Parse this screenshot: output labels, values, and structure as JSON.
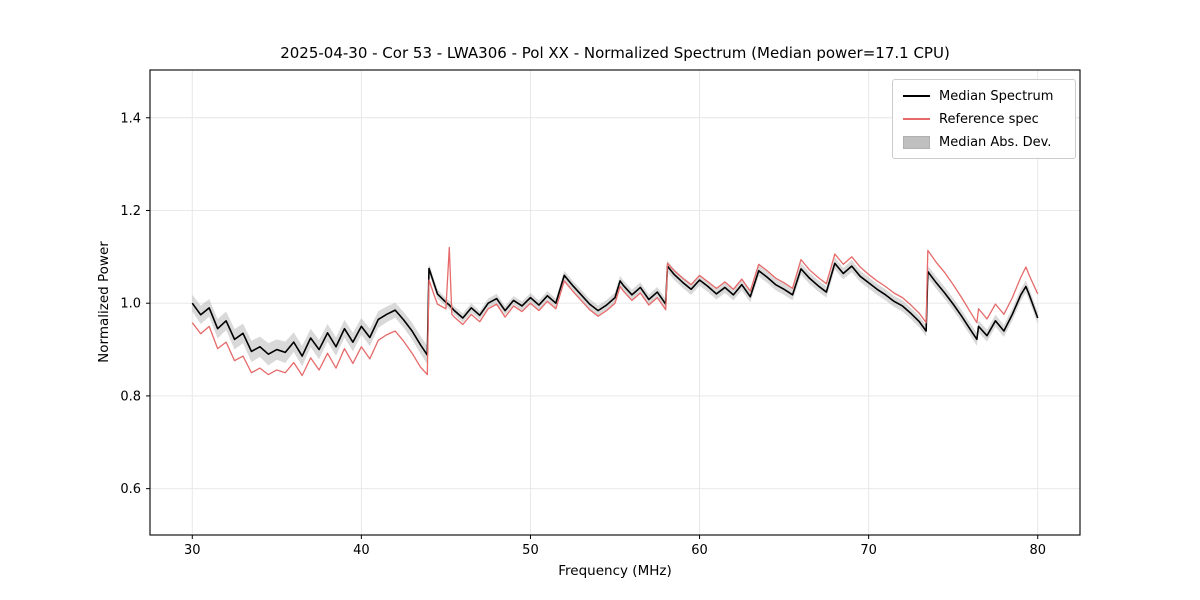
{
  "chart_data": {
    "type": "line",
    "title": "2025-04-30 - Cor 53 - LWA306 - Pol XX - Normalized Spectrum (Median power=17.1 CPU)",
    "xlabel": "Frequency (MHz)",
    "ylabel": "Normalized Power",
    "xlim": [
      27.5,
      82.5
    ],
    "ylim": [
      0.5,
      1.503
    ],
    "xticks": [
      30,
      40,
      50,
      60,
      70,
      80
    ],
    "yticks": [
      0.6,
      0.8,
      1.0,
      1.2,
      1.4
    ],
    "grid": true,
    "legend_position": "upper right",
    "colors": {
      "median": "#000000",
      "reference": "#e66a6a",
      "mad_band": "#aaaaaa",
      "grid": "#e6e6e6",
      "axes": "#000000",
      "tick_text": "#000000"
    },
    "legend": [
      {
        "label": "Median Spectrum",
        "type": "line",
        "color": "#000000"
      },
      {
        "label": "Reference spec",
        "type": "line",
        "color": "#e66a6a"
      },
      {
        "label": "Median Abs. Dev.",
        "type": "patch",
        "color": "#bfbfbf"
      }
    ],
    "x": [
      30.0,
      30.5,
      31.0,
      31.5,
      32.0,
      32.5,
      33.0,
      33.5,
      34.0,
      34.5,
      35.0,
      35.5,
      36.0,
      36.5,
      37.0,
      37.5,
      38.0,
      38.5,
      39.0,
      39.5,
      40.0,
      40.5,
      41.0,
      41.5,
      42.0,
      42.5,
      43.0,
      43.5,
      43.9,
      44.0,
      44.3,
      44.5,
      45.0,
      45.2,
      45.35,
      45.5,
      46.0,
      46.5,
      47.0,
      47.5,
      48.0,
      48.5,
      49.0,
      49.5,
      50.0,
      50.5,
      51.0,
      51.5,
      52.0,
      52.5,
      53.0,
      53.5,
      54.0,
      54.5,
      55.0,
      55.3,
      55.5,
      56.0,
      56.5,
      57.0,
      57.5,
      58.0,
      58.1,
      58.5,
      59.0,
      59.5,
      60.0,
      60.5,
      61.0,
      61.5,
      62.0,
      62.5,
      63.0,
      63.5,
      64.0,
      64.5,
      65.0,
      65.5,
      66.0,
      66.5,
      67.0,
      67.5,
      68.0,
      68.5,
      69.0,
      69.5,
      70.0,
      70.5,
      71.0,
      71.5,
      72.0,
      72.5,
      73.0,
      73.4,
      73.5,
      74.0,
      74.5,
      75.0,
      75.5,
      76.0,
      76.4,
      76.5,
      77.0,
      77.5,
      78.0,
      78.5,
      79.0,
      79.3,
      79.5,
      80.0
    ],
    "series": [
      {
        "name": "Median Spectrum",
        "values": [
          1.0,
          0.975,
          0.99,
          0.945,
          0.962,
          0.922,
          0.935,
          0.896,
          0.906,
          0.89,
          0.9,
          0.894,
          0.916,
          0.886,
          0.925,
          0.9,
          0.936,
          0.906,
          0.945,
          0.916,
          0.95,
          0.926,
          0.965,
          0.976,
          0.985,
          0.964,
          0.94,
          0.91,
          0.888,
          1.075,
          1.042,
          1.02,
          1.002,
          0.996,
          0.99,
          0.984,
          0.968,
          0.99,
          0.974,
          1.0,
          1.01,
          0.984,
          1.006,
          0.994,
          1.012,
          0.996,
          1.016,
          1.0,
          1.06,
          1.038,
          1.018,
          0.998,
          0.984,
          0.996,
          1.012,
          1.048,
          1.038,
          1.018,
          1.034,
          1.008,
          1.024,
          0.998,
          1.08,
          1.062,
          1.045,
          1.03,
          1.05,
          1.036,
          1.02,
          1.034,
          1.018,
          1.04,
          1.014,
          1.07,
          1.056,
          1.04,
          1.03,
          1.018,
          1.074,
          1.054,
          1.038,
          1.024,
          1.086,
          1.064,
          1.08,
          1.058,
          1.044,
          1.03,
          1.018,
          1.004,
          0.994,
          0.978,
          0.96,
          0.94,
          1.068,
          1.044,
          1.022,
          0.998,
          0.972,
          0.944,
          0.922,
          0.95,
          0.93,
          0.962,
          0.94,
          0.976,
          1.018,
          1.036,
          1.018,
          0.968
        ]
      },
      {
        "name": "Reference spec",
        "values": [
          0.958,
          0.934,
          0.95,
          0.902,
          0.916,
          0.876,
          0.886,
          0.85,
          0.86,
          0.846,
          0.856,
          0.85,
          0.872,
          0.844,
          0.882,
          0.856,
          0.892,
          0.86,
          0.902,
          0.87,
          0.906,
          0.88,
          0.92,
          0.932,
          0.94,
          0.918,
          0.892,
          0.862,
          0.846,
          1.05,
          1.018,
          0.998,
          0.988,
          1.12,
          0.976,
          0.97,
          0.954,
          0.976,
          0.96,
          0.988,
          0.998,
          0.97,
          0.994,
          0.982,
          1.0,
          0.984,
          1.004,
          0.988,
          1.048,
          1.026,
          1.006,
          0.986,
          0.972,
          0.984,
          1.0,
          1.036,
          1.026,
          1.006,
          1.022,
          0.996,
          1.012,
          0.986,
          1.086,
          1.07,
          1.054,
          1.04,
          1.06,
          1.046,
          1.032,
          1.046,
          1.03,
          1.052,
          1.026,
          1.084,
          1.07,
          1.054,
          1.044,
          1.032,
          1.094,
          1.072,
          1.056,
          1.042,
          1.106,
          1.084,
          1.1,
          1.078,
          1.062,
          1.048,
          1.036,
          1.022,
          1.012,
          0.996,
          0.978,
          0.958,
          1.114,
          1.088,
          1.066,
          1.04,
          1.012,
          0.982,
          0.958,
          0.988,
          0.966,
          0.998,
          0.976,
          1.012,
          1.056,
          1.078,
          1.06,
          1.02
        ]
      }
    ],
    "mad": [
      0.018,
      0.02,
      0.019,
      0.021,
      0.02,
      0.022,
      0.021,
      0.023,
      0.022,
      0.024,
      0.022,
      0.023,
      0.021,
      0.022,
      0.02,
      0.021,
      0.019,
      0.02,
      0.019,
      0.02,
      0.018,
      0.019,
      0.018,
      0.017,
      0.016,
      0.017,
      0.018,
      0.019,
      0.02,
      0.01,
      0.01,
      0.01,
      0.009,
      0.009,
      0.009,
      0.009,
      0.01,
      0.01,
      0.009,
      0.01,
      0.01,
      0.01,
      0.009,
      0.01,
      0.01,
      0.01,
      0.01,
      0.01,
      0.01,
      0.01,
      0.011,
      0.011,
      0.011,
      0.011,
      0.011,
      0.011,
      0.011,
      0.011,
      0.011,
      0.011,
      0.011,
      0.011,
      0.012,
      0.012,
      0.012,
      0.012,
      0.012,
      0.012,
      0.012,
      0.012,
      0.012,
      0.012,
      0.012,
      0.012,
      0.012,
      0.012,
      0.012,
      0.012,
      0.013,
      0.012,
      0.012,
      0.012,
      0.013,
      0.012,
      0.013,
      0.012,
      0.012,
      0.012,
      0.012,
      0.012,
      0.012,
      0.012,
      0.012,
      0.012,
      0.013,
      0.013,
      0.013,
      0.013,
      0.013,
      0.013,
      0.014,
      0.013,
      0.013,
      0.013,
      0.013,
      0.013,
      0.013,
      0.013,
      0.013,
      0.013
    ]
  }
}
